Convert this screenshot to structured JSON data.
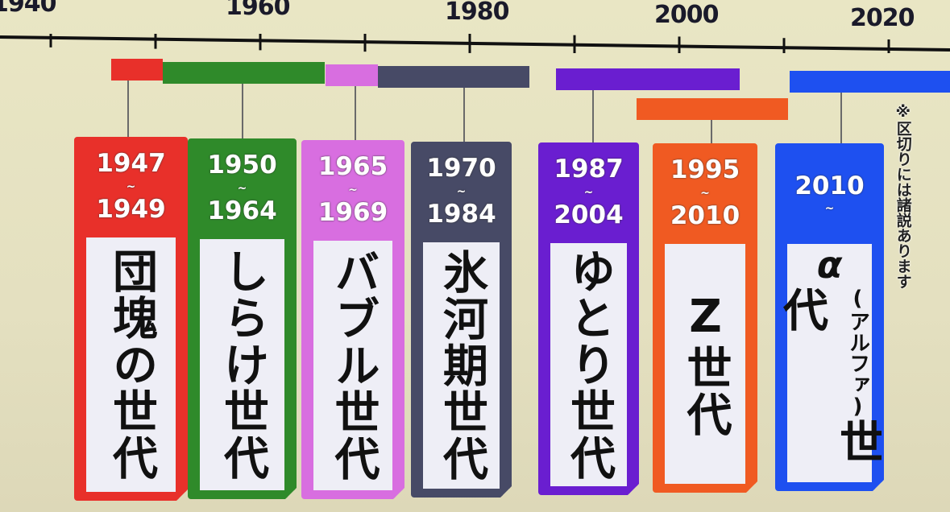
{
  "timeline": {
    "year_labels": [
      "1940",
      "1960",
      "1980",
      "2000",
      "2020"
    ],
    "tick_years": [
      1940,
      1950,
      1960,
      1970,
      1980,
      1990,
      2000,
      2010,
      2020
    ]
  },
  "generations": [
    {
      "start": "1947",
      "end": "1949",
      "name": "団塊の世代",
      "color": "#e8302a"
    },
    {
      "start": "1950",
      "end": "1964",
      "name": "しらけ世代",
      "color": "#2f8a2a"
    },
    {
      "start": "1965",
      "end": "1969",
      "name": "バブル世代",
      "color": "#d86ee0"
    },
    {
      "start": "1970",
      "end": "1984",
      "name": "氷河期世代",
      "color": "#474a66"
    },
    {
      "start": "1987",
      "end": "2004",
      "name": "ゆとり世代",
      "color": "#6a1ed0"
    },
    {
      "start": "1995",
      "end": "2010",
      "name": "Z世代",
      "color": "#f05a22"
    },
    {
      "start": "2010",
      "end": "",
      "name": "世代",
      "prefix": "α",
      "reading": "(アルファ)",
      "color": "#1e50f0"
    }
  ],
  "range_separator": "~",
  "note": "※区切りには諸説あります"
}
